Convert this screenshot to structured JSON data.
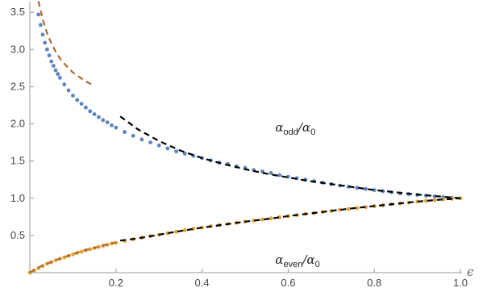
{
  "chart_data": {
    "type": "scatter",
    "title": "",
    "xlabel": "ϵ",
    "ylabel": "",
    "xlim": [
      0,
      1.0
    ],
    "ylim": [
      0,
      3.6
    ],
    "grid": false,
    "x_ticks": [
      {
        "value": 0.2,
        "label": "0.2"
      },
      {
        "value": 0.4,
        "label": "0.4"
      },
      {
        "value": 0.6,
        "label": "0.6"
      },
      {
        "value": 0.8,
        "label": "0.8"
      },
      {
        "value": 1.0,
        "label": "1.0"
      }
    ],
    "y_ticks": [
      {
        "value": 0.5,
        "label": "0.5"
      },
      {
        "value": 1.0,
        "label": "1.0"
      },
      {
        "value": 1.5,
        "label": "1.5"
      },
      {
        "value": 2.0,
        "label": "2.0"
      },
      {
        "value": 2.5,
        "label": "2.5"
      },
      {
        "value": 3.0,
        "label": "3.0"
      },
      {
        "value": 3.5,
        "label": "3.5"
      }
    ],
    "annotations": [
      {
        "id": "odd",
        "main": "α",
        "sub": "odd",
        "mid": "/α",
        "sub2": "0",
        "x": 0.57,
        "y": 1.9
      },
      {
        "id": "even",
        "main": "α",
        "sub": "even",
        "mid": "/α",
        "sub2": "0",
        "x": 0.57,
        "y": 0.12
      }
    ],
    "series": [
      {
        "kind": "points",
        "color": "#5b83c2",
        "x": [
          0.02,
          0.025,
          0.03,
          0.035,
          0.04,
          0.045,
          0.05,
          0.055,
          0.06,
          0.065,
          0.07,
          0.08,
          0.09,
          0.1,
          0.11,
          0.12,
          0.13,
          0.14,
          0.15,
          0.16,
          0.17,
          0.18,
          0.19,
          0.2,
          0.22,
          0.24,
          0.26,
          0.28,
          0.3,
          0.32,
          0.34,
          0.36,
          0.38,
          0.4,
          0.42,
          0.44,
          0.46,
          0.48,
          0.5,
          0.52,
          0.54,
          0.56,
          0.58,
          0.6,
          0.62,
          0.64,
          0.66,
          0.68,
          0.7,
          0.72,
          0.74,
          0.76,
          0.78,
          0.8,
          0.82,
          0.84,
          0.86,
          0.88,
          0.9,
          0.92,
          0.94,
          0.96,
          0.98,
          1.0
        ],
        "y": [
          3.47,
          3.33,
          3.2,
          3.09,
          3.0,
          2.92,
          2.84,
          2.78,
          2.72,
          2.67,
          2.62,
          2.53,
          2.45,
          2.38,
          2.32,
          2.27,
          2.22,
          2.17,
          2.13,
          2.09,
          2.05,
          2.02,
          1.98,
          1.95,
          1.89,
          1.84,
          1.79,
          1.75,
          1.71,
          1.67,
          1.63,
          1.6,
          1.57,
          1.54,
          1.51,
          1.48,
          1.46,
          1.43,
          1.41,
          1.38,
          1.36,
          1.34,
          1.31,
          1.29,
          1.27,
          1.25,
          1.23,
          1.21,
          1.19,
          1.17,
          1.155,
          1.14,
          1.125,
          1.11,
          1.095,
          1.08,
          1.065,
          1.055,
          1.045,
          1.035,
          1.025,
          1.015,
          1.007,
          1.0
        ]
      },
      {
        "kind": "points",
        "color": "#e0a030",
        "x": [
          0.0,
          0.01,
          0.02,
          0.03,
          0.04,
          0.05,
          0.06,
          0.07,
          0.08,
          0.09,
          0.1,
          0.11,
          0.12,
          0.13,
          0.14,
          0.15,
          0.16,
          0.17,
          0.18,
          0.19,
          0.2,
          0.22,
          0.24,
          0.26,
          0.28,
          0.3,
          0.32,
          0.34,
          0.36,
          0.38,
          0.4,
          0.42,
          0.44,
          0.46,
          0.48,
          0.5,
          0.52,
          0.54,
          0.56,
          0.58,
          0.6,
          0.62,
          0.64,
          0.66,
          0.68,
          0.7,
          0.72,
          0.74,
          0.76,
          0.78,
          0.8,
          0.82,
          0.84,
          0.86,
          0.88,
          0.9,
          0.92,
          0.94,
          0.96,
          0.98,
          1.0
        ],
        "y": [
          0.0,
          0.03,
          0.06,
          0.09,
          0.12,
          0.14,
          0.165,
          0.185,
          0.205,
          0.225,
          0.245,
          0.265,
          0.28,
          0.3,
          0.315,
          0.33,
          0.345,
          0.36,
          0.375,
          0.39,
          0.4,
          0.425,
          0.45,
          0.47,
          0.49,
          0.51,
          0.53,
          0.55,
          0.57,
          0.59,
          0.605,
          0.625,
          0.64,
          0.655,
          0.67,
          0.685,
          0.7,
          0.715,
          0.73,
          0.745,
          0.76,
          0.775,
          0.79,
          0.8,
          0.815,
          0.83,
          0.845,
          0.855,
          0.87,
          0.88,
          0.895,
          0.905,
          0.92,
          0.93,
          0.94,
          0.955,
          0.965,
          0.975,
          0.985,
          0.993,
          1.0
        ]
      },
      {
        "kind": "dashed",
        "color": "#b06a30",
        "x": [
          0.02,
          0.03,
          0.04,
          0.05,
          0.06,
          0.07,
          0.08,
          0.09,
          0.1,
          0.11,
          0.12,
          0.13,
          0.14,
          0.15
        ],
        "y": [
          3.65,
          3.4,
          3.22,
          3.08,
          2.97,
          2.88,
          2.81,
          2.75,
          2.69,
          2.65,
          2.61,
          2.57,
          2.54,
          2.51
        ]
      },
      {
        "kind": "dashed",
        "color": "#000000",
        "x": [
          0.21,
          0.25,
          0.3,
          0.35,
          0.4,
          0.45,
          0.5,
          0.55,
          0.6,
          0.65,
          0.7,
          0.75,
          0.8,
          0.85,
          0.9,
          0.95,
          1.0
        ],
        "y": [
          2.1,
          1.93,
          1.77,
          1.64,
          1.54,
          1.46,
          1.39,
          1.33,
          1.28,
          1.23,
          1.19,
          1.15,
          1.11,
          1.08,
          1.05,
          1.025,
          1.0
        ]
      },
      {
        "kind": "dashed",
        "color": "#b06a30",
        "x": [
          0.0,
          0.02,
          0.04,
          0.06,
          0.08,
          0.1,
          0.12,
          0.14,
          0.16,
          0.18,
          0.2
        ],
        "y": [
          0.0,
          0.07,
          0.12,
          0.17,
          0.21,
          0.25,
          0.29,
          0.32,
          0.35,
          0.38,
          0.41
        ]
      },
      {
        "kind": "dashed",
        "color": "#000000",
        "x": [
          0.21,
          0.25,
          0.3,
          0.35,
          0.4,
          0.45,
          0.5,
          0.55,
          0.6,
          0.65,
          0.7,
          0.75,
          0.8,
          0.85,
          0.9,
          0.95,
          1.0
        ],
        "y": [
          0.43,
          0.46,
          0.51,
          0.56,
          0.605,
          0.645,
          0.685,
          0.72,
          0.76,
          0.795,
          0.83,
          0.865,
          0.895,
          0.925,
          0.955,
          0.98,
          1.0
        ]
      }
    ]
  }
}
